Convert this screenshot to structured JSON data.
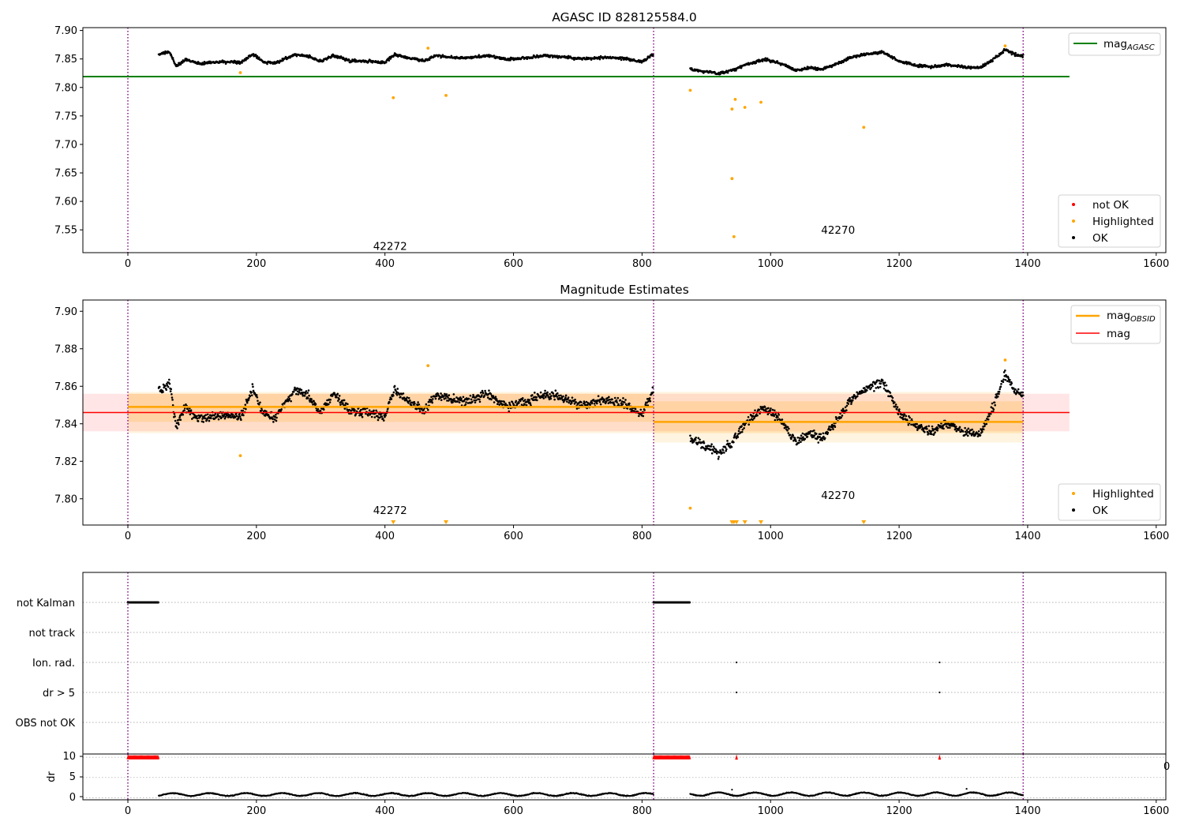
{
  "figure": {
    "title_top": "AGASC ID 828125584.0",
    "title_mid": "Magnitude Estimates"
  },
  "colors": {
    "ok": "#000000",
    "highlighted": "#ffa500",
    "not_ok": "#ff0000",
    "agasc": "#008000",
    "obsid": "#ffa500",
    "mag": "#ff0000",
    "epoch": "#800080",
    "grid": "#b0b0b0"
  },
  "legends": {
    "top_line": {
      "prefix": "mag",
      "sub": "AGASC"
    },
    "top_points": [
      "not OK",
      "Highlighted",
      "OK"
    ],
    "mid_lines": [
      {
        "prefix": "mag",
        "sub": "OBSID"
      },
      {
        "prefix": "mag",
        "sub": ""
      }
    ],
    "mid_points": [
      "Highlighted",
      "OK"
    ]
  },
  "annotations": [
    "42272",
    "42270"
  ],
  "flag_panel": {
    "categories": [
      "not Kalman",
      "not track",
      "Ion. rad.",
      "dr > 5",
      "OBS not OK"
    ],
    "dr_ylabel": "dr",
    "dr_ticks": [
      "0",
      "5",
      "10"
    ],
    "stray_label": "0"
  },
  "chart_data": [
    {
      "type": "scatter",
      "title": "AGASC ID 828125584.0",
      "xlim": [
        -70,
        1615
      ],
      "ylim": [
        7.51,
        7.905
      ],
      "x_ticks": [
        0,
        200,
        400,
        600,
        800,
        1000,
        1200,
        1400,
        1600
      ],
      "y_ticks": [
        7.55,
        7.6,
        7.65,
        7.7,
        7.75,
        7.8,
        7.85,
        7.9
      ],
      "legend_placement": [
        "upper right",
        "lower right"
      ],
      "epochs": [
        0,
        818,
        1393
      ],
      "observations": [
        {
          "label": "42272",
          "x_start": 48,
          "x_end": 818,
          "annotation_x": 408,
          "annotation_y": 7.515
        },
        {
          "label": "42270",
          "x_start": 875,
          "x_end": 1393,
          "annotation_x": 1105,
          "annotation_y": 7.543
        }
      ],
      "series": [
        {
          "name": "mag_AGASC",
          "kind": "line",
          "y": 7.819,
          "x_range": [
            -70,
            1465
          ]
        },
        {
          "name": "not OK",
          "kind": "points",
          "points": []
        },
        {
          "name": "Highlighted",
          "kind": "points",
          "points": [
            [
              175,
              7.826
            ],
            [
              413,
              7.782
            ],
            [
              467,
              7.869
            ],
            [
              495,
              7.786
            ],
            [
              875,
              7.795
            ],
            [
              940,
              7.762
            ],
            [
              940,
              7.64
            ],
            [
              943,
              7.538
            ],
            [
              945,
              7.779
            ],
            [
              960,
              7.765
            ],
            [
              985,
              7.774
            ],
            [
              1145,
              7.73
            ],
            [
              1365,
              7.873
            ]
          ]
        },
        {
          "name": "OK",
          "kind": "noisy-track",
          "segments": [
            {
              "x_start": 48,
              "x_end": 818,
              "anchors": [
                [
                  48,
                  7.858
                ],
                [
                  65,
                  7.862
                ],
                [
                  75,
                  7.838
                ],
                [
                  90,
                  7.849
                ],
                [
                  110,
                  7.842
                ],
                [
                  130,
                  7.844
                ],
                [
                  150,
                  7.845
                ],
                [
                  175,
                  7.843
                ],
                [
                  195,
                  7.859
                ],
                [
                  210,
                  7.845
                ],
                [
                  230,
                  7.843
                ],
                [
                  260,
                  7.858
                ],
                [
                  280,
                  7.855
                ],
                [
                  300,
                  7.846
                ],
                [
                  320,
                  7.856
                ],
                [
                  345,
                  7.847
                ],
                [
                  370,
                  7.846
                ],
                [
                  400,
                  7.844
                ],
                [
                  415,
                  7.858
                ],
                [
                  440,
                  7.851
                ],
                [
                  460,
                  7.847
                ],
                [
                  480,
                  7.856
                ],
                [
                  500,
                  7.853
                ],
                [
                  530,
                  7.852
                ],
                [
                  560,
                  7.856
                ],
                [
                  590,
                  7.849
                ],
                [
                  620,
                  7.852
                ],
                [
                  650,
                  7.856
                ],
                [
                  680,
                  7.853
                ],
                [
                  710,
                  7.85
                ],
                [
                  740,
                  7.853
                ],
                [
                  770,
                  7.851
                ],
                [
                  800,
                  7.845
                ],
                [
                  818,
                  7.858
                ]
              ],
              "noise": 0.0035
            },
            {
              "x_start": 875,
              "x_end": 1393,
              "anchors": [
                [
                  875,
                  7.832
                ],
                [
                  900,
                  7.828
                ],
                [
                  920,
                  7.824
                ],
                [
                  945,
                  7.832
                ],
                [
                  960,
                  7.84
                ],
                [
                  990,
                  7.849
                ],
                [
                  1010,
                  7.844
                ],
                [
                  1025,
                  7.838
                ],
                [
                  1040,
                  7.83
                ],
                [
                  1060,
                  7.835
                ],
                [
                  1080,
                  7.832
                ],
                [
                  1100,
                  7.84
                ],
                [
                  1125,
                  7.853
                ],
                [
                  1150,
                  7.859
                ],
                [
                  1175,
                  7.862
                ],
                [
                  1200,
                  7.846
                ],
                [
                  1225,
                  7.839
                ],
                [
                  1250,
                  7.836
                ],
                [
                  1275,
                  7.84
                ],
                [
                  1300,
                  7.836
                ],
                [
                  1325,
                  7.834
                ],
                [
                  1345,
                  7.848
                ],
                [
                  1365,
                  7.866
                ],
                [
                  1380,
                  7.858
                ],
                [
                  1393,
                  7.855
                ]
              ],
              "noise": 0.0035
            }
          ]
        }
      ]
    },
    {
      "type": "scatter",
      "title": "Magnitude Estimates",
      "xlim": [
        -70,
        1615
      ],
      "ylim": [
        7.786,
        7.906
      ],
      "x_ticks": [
        0,
        200,
        400,
        600,
        800,
        1000,
        1200,
        1400,
        1600
      ],
      "y_ticks": [
        7.8,
        7.82,
        7.84,
        7.86,
        7.88,
        7.9
      ],
      "legend_placement": [
        "upper right",
        "lower right"
      ],
      "epochs": [
        0,
        818,
        1393
      ],
      "observations": [
        {
          "label": "42272",
          "x_start": 0,
          "x_end": 818,
          "annotation_x": 408,
          "annotation_y": 7.792
        },
        {
          "label": "42270",
          "x_start": 818,
          "x_end": 1393,
          "annotation_x": 1105,
          "annotation_y": 7.8
        }
      ],
      "series": [
        {
          "name": "mag",
          "kind": "line",
          "y": 7.846,
          "band": [
            7.836,
            7.856
          ],
          "x_range": [
            -70,
            1465
          ]
        },
        {
          "name": "mag_OBSID",
          "kind": "segments",
          "segments": [
            {
              "x_start": 0,
              "x_end": 818,
              "y": 7.849,
              "band_inner": [
                7.841,
                7.856
              ],
              "band_outer": [
                7.835,
                7.857
              ]
            },
            {
              "x_start": 818,
              "x_end": 1393,
              "y": 7.841,
              "band_inner": [
                7.835,
                7.852
              ],
              "band_outer": [
                7.83,
                7.857
              ]
            }
          ]
        },
        {
          "name": "Highlighted",
          "kind": "points",
          "points": [
            [
              175,
              7.823
            ],
            [
              467,
              7.871
            ],
            [
              875,
              7.795
            ],
            [
              1365,
              7.874
            ]
          ],
          "below_axis_markers": [
            413,
            495,
            940,
            943,
            947,
            960,
            985,
            1145
          ]
        },
        {
          "name": "OK",
          "kind": "noisy-track",
          "segments": [
            {
              "x_start": 48,
              "x_end": 818,
              "anchors": [
                [
                  48,
                  7.858
                ],
                [
                  65,
                  7.862
                ],
                [
                  75,
                  7.838
                ],
                [
                  90,
                  7.849
                ],
                [
                  110,
                  7.842
                ],
                [
                  130,
                  7.844
                ],
                [
                  150,
                  7.845
                ],
                [
                  175,
                  7.843
                ],
                [
                  195,
                  7.859
                ],
                [
                  210,
                  7.845
                ],
                [
                  230,
                  7.843
                ],
                [
                  260,
                  7.858
                ],
                [
                  280,
                  7.855
                ],
                [
                  300,
                  7.846
                ],
                [
                  320,
                  7.856
                ],
                [
                  345,
                  7.847
                ],
                [
                  370,
                  7.846
                ],
                [
                  400,
                  7.844
                ],
                [
                  415,
                  7.858
                ],
                [
                  440,
                  7.851
                ],
                [
                  460,
                  7.847
                ],
                [
                  480,
                  7.856
                ],
                [
                  500,
                  7.853
                ],
                [
                  530,
                  7.852
                ],
                [
                  560,
                  7.856
                ],
                [
                  590,
                  7.849
                ],
                [
                  620,
                  7.852
                ],
                [
                  650,
                  7.856
                ],
                [
                  680,
                  7.853
                ],
                [
                  710,
                  7.85
                ],
                [
                  740,
                  7.853
                ],
                [
                  770,
                  7.851
                ],
                [
                  800,
                  7.845
                ],
                [
                  818,
                  7.858
                ]
              ],
              "noise": 0.0035
            },
            {
              "x_start": 875,
              "x_end": 1393,
              "anchors": [
                [
                  875,
                  7.832
                ],
                [
                  900,
                  7.828
                ],
                [
                  920,
                  7.824
                ],
                [
                  945,
                  7.832
                ],
                [
                  960,
                  7.84
                ],
                [
                  990,
                  7.849
                ],
                [
                  1010,
                  7.844
                ],
                [
                  1025,
                  7.838
                ],
                [
                  1040,
                  7.83
                ],
                [
                  1060,
                  7.835
                ],
                [
                  1080,
                  7.832
                ],
                [
                  1100,
                  7.84
                ],
                [
                  1125,
                  7.853
                ],
                [
                  1150,
                  7.859
                ],
                [
                  1175,
                  7.862
                ],
                [
                  1200,
                  7.846
                ],
                [
                  1225,
                  7.839
                ],
                [
                  1250,
                  7.836
                ],
                [
                  1275,
                  7.84
                ],
                [
                  1300,
                  7.836
                ],
                [
                  1325,
                  7.834
                ],
                [
                  1345,
                  7.848
                ],
                [
                  1365,
                  7.866
                ],
                [
                  1380,
                  7.858
                ],
                [
                  1393,
                  7.855
                ]
              ],
              "noise": 0.0035
            }
          ]
        }
      ]
    },
    {
      "type": "scatter",
      "title": "",
      "xlim": [
        -70,
        1615
      ],
      "categories": [
        "not Kalman",
        "not track",
        "Ion. rad.",
        "dr > 5",
        "OBS not OK"
      ],
      "epochs": [
        0,
        818,
        1393
      ],
      "flags": {
        "not Kalman": [
          [
            0,
            48
          ],
          [
            818,
            875
          ]
        ],
        "not track": [],
        "Ion. rad.": [
          947,
          1263
        ],
        "dr > 5": [
          947,
          1263
        ],
        "OBS not OK": []
      }
    },
    {
      "type": "scatter",
      "title": "",
      "xlim": [
        -70,
        1615
      ],
      "ylim": [
        -0.5,
        10.8
      ],
      "y_ticks": [
        0,
        5,
        10
      ],
      "ylabel": "dr",
      "clipped_at_10": [
        [
          0,
          48
        ],
        [
          818,
          875
        ],
        947,
        1263
      ],
      "series": [
        {
          "name": "dr",
          "kind": "track",
          "segments": [
            {
              "x_start": 48,
              "x_end": 818,
              "base": 0.8,
              "amp": 0.7
            },
            {
              "x_start": 875,
              "x_end": 1393,
              "base": 0.9,
              "amp": 0.8
            }
          ],
          "extra_points": [
            [
              940,
              2.0
            ],
            [
              1305,
              2.2
            ]
          ]
        }
      ]
    }
  ]
}
